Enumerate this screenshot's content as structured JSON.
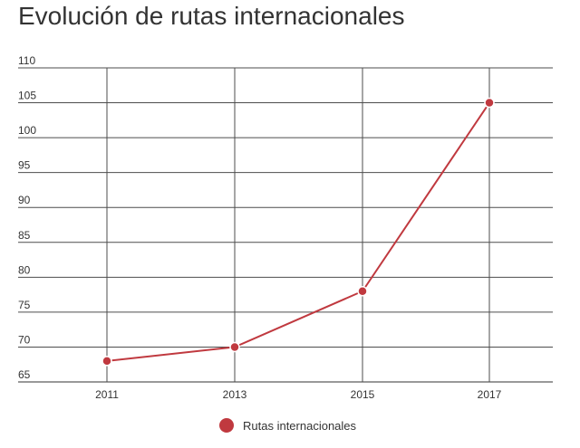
{
  "chart_data": {
    "type": "line",
    "title": "Evolución de rutas internacionales",
    "xlabel": "",
    "ylabel": "",
    "categories": [
      "2011",
      "2013",
      "2015",
      "2017"
    ],
    "series": [
      {
        "name": "Rutas internacionales",
        "values": [
          68,
          70,
          78,
          105
        ],
        "color": "#c0393f"
      }
    ],
    "ylim": [
      65,
      110
    ],
    "yticks": [
      "110",
      "105",
      "100",
      "95",
      "90",
      "85",
      "80",
      "75",
      "70",
      "65"
    ],
    "grid": true,
    "legend": "bottom-center"
  }
}
